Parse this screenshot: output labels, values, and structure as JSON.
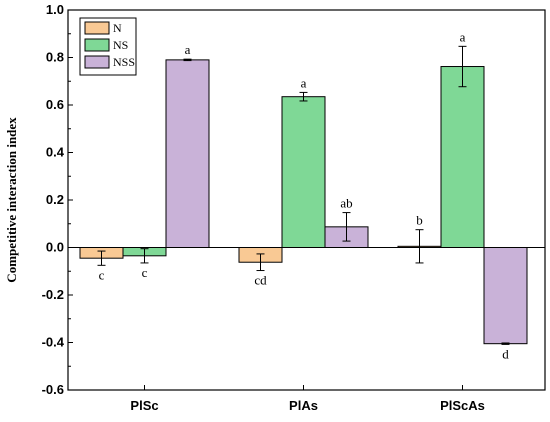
{
  "chart_data": {
    "type": "bar",
    "title": "",
    "xlabel": "",
    "ylabel": "Competitive interaction index",
    "categories": [
      "PlSc",
      "PlAs",
      "PlScAs"
    ],
    "ylim": [
      -0.6,
      1.0
    ],
    "yticks": [
      -0.6,
      -0.4,
      -0.2,
      0.0,
      0.2,
      0.4,
      0.6,
      0.8,
      1.0
    ],
    "ytick_labels": [
      "-0.6",
      "-0.4",
      "-0.2",
      "0.0",
      "0.2",
      "0.4",
      "0.6",
      "0.8",
      "1.0"
    ],
    "legend_position": "top-left",
    "grid": false,
    "series": [
      {
        "name": "N",
        "color": "#f9c994",
        "values": [
          -0.045,
          -0.062,
          0.005
        ],
        "errors": [
          0.03,
          0.035,
          0.07
        ],
        "labels": [
          "c",
          "cd",
          "b"
        ]
      },
      {
        "name": "NS",
        "color": "#7fd896",
        "values": [
          -0.035,
          0.635,
          0.762
        ],
        "errors": [
          0.03,
          0.018,
          0.085
        ],
        "labels": [
          "c",
          "a",
          "a"
        ]
      },
      {
        "name": "NSS",
        "color": "#c9b2d8",
        "values": [
          0.79,
          0.087,
          -0.405
        ],
        "errors": [
          0.003,
          0.06,
          0.003
        ],
        "labels": [
          "a",
          "ab",
          "d"
        ]
      }
    ]
  }
}
